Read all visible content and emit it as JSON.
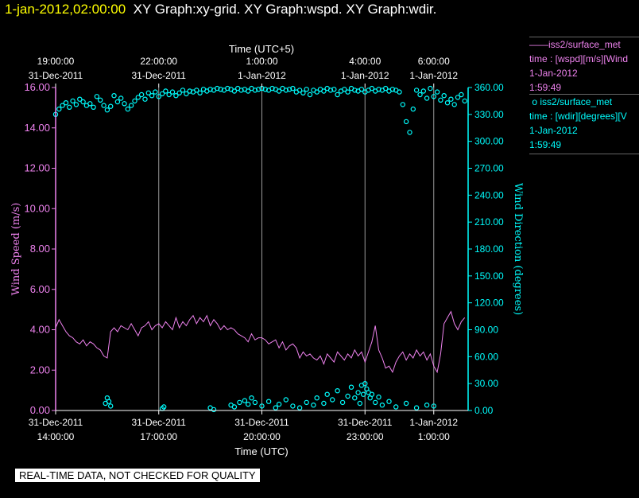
{
  "header": {
    "timestamp": "1-jan-2012,02:00:00",
    "graphs": "XY Graph:xy-grid.  XY Graph:wspd.  XY Graph:wdir."
  },
  "legend": [
    {
      "marker": "——",
      "name": "iss2/surface_met",
      "variable": "time : [wspd][m/s][Wind",
      "date": "1-Jan-2012",
      "time": "1:59:49",
      "color": "#ee82ee"
    },
    {
      "marker": "o",
      "name": "iss2/surface_met",
      "variable": "time : [wdir][degrees][V",
      "date": "1-Jan-2012",
      "time": "1:59:49",
      "color": "#00ffff"
    }
  ],
  "footer": {
    "warning": "REAL-TIME DATA, NOT CHECKED FOR QUALITY"
  },
  "chart_data": {
    "type": "line",
    "top_axis": {
      "label": "Time (UTC+5)",
      "ticks": [
        {
          "x": 14.0,
          "line1": "19:00:00",
          "line2": "31-Dec-2011"
        },
        {
          "x": 17.0,
          "line1": "22:00:00",
          "line2": "31-Dec-2011"
        },
        {
          "x": 20.0,
          "line1": "1:00:00",
          "line2": "1-Jan-2012"
        },
        {
          "x": 23.0,
          "line1": "4:00:00",
          "line2": "1-Jan-2012"
        },
        {
          "x": 25.0,
          "line1": "6:00:00",
          "line2": "1-Jan-2012"
        }
      ]
    },
    "bottom_axis": {
      "label": "Time (UTC)",
      "ticks": [
        {
          "x": 14.0,
          "line1": "31-Dec-2011",
          "line2": "14:00:00"
        },
        {
          "x": 17.0,
          "line1": "31-Dec-2011",
          "line2": "17:00:00"
        },
        {
          "x": 20.0,
          "line1": "31-Dec-2011",
          "line2": "20:00:00"
        },
        {
          "x": 23.0,
          "line1": "31-Dec-2011",
          "line2": "23:00:00"
        },
        {
          "x": 25.0,
          "line1": "1-Jan-2012",
          "line2": "1:00:00"
        }
      ]
    },
    "x_units": "hours (UTC) since 31-Dec-2011 00:00",
    "xlim": [
      14.0,
      26.0
    ],
    "left_axis": {
      "label": "Wind Speed (m/s)",
      "ylim": [
        0,
        16
      ],
      "ticks": [
        "0.00",
        "2.00",
        "4.00",
        "6.00",
        "8.00",
        "10.00",
        "12.00",
        "14.00",
        "16.00"
      ],
      "color": "#ee82ee"
    },
    "right_axis": {
      "label": "Wind Direction (degrees)",
      "ylim": [
        0,
        360
      ],
      "ticks": [
        "0.00",
        "30.00",
        "60.00",
        "90.00",
        "120.00",
        "150.00",
        "180.00",
        "210.00",
        "240.00",
        "270.00",
        "300.00",
        "330.00",
        "360.00"
      ],
      "color": "#00ffff"
    },
    "grid": true,
    "series": [
      {
        "name": "wspd",
        "axis": "left",
        "style": "line",
        "color": "#ee82ee",
        "x": [
          14.0,
          14.1,
          14.2,
          14.3,
          14.4,
          14.5,
          14.6,
          14.7,
          14.8,
          14.9,
          15.0,
          15.1,
          15.2,
          15.3,
          15.4,
          15.5,
          15.6,
          15.7,
          15.8,
          15.9,
          16.0,
          16.1,
          16.2,
          16.3,
          16.4,
          16.5,
          16.6,
          16.7,
          16.8,
          16.9,
          17.0,
          17.1,
          17.2,
          17.3,
          17.4,
          17.5,
          17.6,
          17.7,
          17.8,
          17.9,
          18.0,
          18.1,
          18.2,
          18.3,
          18.4,
          18.5,
          18.6,
          18.7,
          18.8,
          18.9,
          19.0,
          19.1,
          19.2,
          19.3,
          19.4,
          19.5,
          19.6,
          19.7,
          19.8,
          19.9,
          20.0,
          20.1,
          20.2,
          20.3,
          20.4,
          20.5,
          20.6,
          20.7,
          20.8,
          20.9,
          21.0,
          21.1,
          21.2,
          21.3,
          21.4,
          21.5,
          21.6,
          21.7,
          21.8,
          21.9,
          22.0,
          22.1,
          22.2,
          22.3,
          22.4,
          22.5,
          22.6,
          22.7,
          22.8,
          22.9,
          23.0,
          23.1,
          23.2,
          23.3,
          23.4,
          23.5,
          23.6,
          23.7,
          23.8,
          23.9,
          24.0,
          24.1,
          24.2,
          24.3,
          24.4,
          24.5,
          24.6,
          24.7,
          24.8,
          24.9,
          25.0,
          25.1,
          25.2,
          25.3,
          25.4,
          25.5,
          25.6,
          25.7,
          25.8,
          25.9
        ],
        "y": [
          4.1,
          4.5,
          4.2,
          3.9,
          3.7,
          3.6,
          3.4,
          3.3,
          3.5,
          3.2,
          3.4,
          3.3,
          3.1,
          3.0,
          2.7,
          2.6,
          3.9,
          4.1,
          3.9,
          4.2,
          4.1,
          4.0,
          4.3,
          4.0,
          3.7,
          4.1,
          4.2,
          4.4,
          4.0,
          4.2,
          4.3,
          4.1,
          4.4,
          4.2,
          4.0,
          4.6,
          4.1,
          4.4,
          4.2,
          4.5,
          4.7,
          4.3,
          4.6,
          4.4,
          4.7,
          4.2,
          4.5,
          4.3,
          4.0,
          4.2,
          4.0,
          4.1,
          4.0,
          3.8,
          3.7,
          3.6,
          3.4,
          3.8,
          3.5,
          3.6,
          3.6,
          3.5,
          3.3,
          3.4,
          3.5,
          3.1,
          3.4,
          3.0,
          3.2,
          3.3,
          3.1,
          2.6,
          2.9,
          2.7,
          2.8,
          2.6,
          2.5,
          2.7,
          2.3,
          2.8,
          2.6,
          2.4,
          2.9,
          2.7,
          2.5,
          2.8,
          2.6,
          3.0,
          2.7,
          2.9,
          2.4,
          2.9,
          3.4,
          4.2,
          3.0,
          2.6,
          2.1,
          2.2,
          1.9,
          2.4,
          2.7,
          2.9,
          2.5,
          2.8,
          2.6,
          3.0,
          2.7,
          2.9,
          2.5,
          2.8,
          2.2,
          1.9,
          2.8,
          4.3,
          4.6,
          4.9,
          4.3,
          4.0,
          4.4,
          4.6
        ]
      },
      {
        "name": "wdir",
        "axis": "right",
        "style": "circles",
        "color": "#00ffff",
        "x": [
          14.0,
          14.1,
          14.2,
          14.3,
          14.4,
          14.5,
          14.6,
          14.7,
          14.8,
          14.9,
          15.0,
          15.1,
          15.2,
          15.3,
          15.4,
          15.5,
          15.6,
          15.7,
          15.8,
          15.9,
          16.0,
          16.1,
          16.2,
          16.3,
          16.4,
          16.5,
          16.6,
          16.7,
          16.8,
          16.9,
          17.0,
          17.1,
          17.2,
          17.3,
          17.4,
          17.5,
          17.6,
          17.7,
          17.8,
          17.9,
          18.0,
          18.1,
          18.2,
          18.3,
          18.4,
          18.5,
          18.6,
          18.7,
          18.8,
          18.9,
          19.0,
          19.1,
          19.2,
          19.3,
          19.4,
          19.5,
          19.6,
          19.7,
          19.8,
          19.9,
          20.0,
          20.1,
          20.2,
          20.3,
          20.4,
          20.5,
          20.6,
          20.7,
          20.8,
          20.9,
          21.0,
          21.1,
          21.2,
          21.3,
          21.4,
          21.5,
          21.6,
          21.7,
          21.8,
          21.9,
          22.0,
          22.1,
          22.2,
          22.3,
          22.4,
          22.5,
          22.6,
          22.7,
          22.8,
          22.9,
          23.0,
          23.1,
          23.2,
          23.3,
          23.4,
          23.5,
          23.6,
          23.7,
          23.8,
          23.9,
          24.0,
          24.1,
          24.2,
          24.3,
          24.4,
          24.5,
          24.6,
          24.7,
          24.8,
          24.9,
          25.0,
          25.1,
          25.2,
          25.3,
          25.4,
          25.5,
          25.6,
          25.7,
          25.8,
          25.9
        ],
        "y": [
          330,
          336,
          340,
          343,
          338,
          345,
          341,
          347,
          344,
          340,
          342,
          338,
          350,
          346,
          340,
          335,
          339,
          351,
          344,
          348,
          342,
          336,
          340,
          345,
          349,
          352,
          347,
          354,
          351,
          355,
          350,
          353,
          356,
          352,
          355,
          351,
          354,
          357,
          353,
          356,
          355,
          357,
          354,
          358,
          356,
          358,
          357,
          359,
          358,
          357,
          359,
          358,
          356,
          359,
          357,
          358,
          356,
          359,
          357,
          358,
          359,
          358,
          357,
          359,
          358,
          356,
          359,
          357,
          358,
          359,
          355,
          357,
          354,
          358,
          352,
          357,
          355,
          358,
          356,
          359,
          357,
          358,
          352,
          356,
          358,
          355,
          359,
          357,
          356,
          358,
          355,
          357,
          359,
          356,
          358,
          357,
          359,
          356,
          358,
          357,
          355,
          341,
          322,
          310,
          336,
          357,
          352,
          356,
          348,
          359,
          350,
          355,
          346,
          351,
          343,
          347,
          341,
          349,
          352,
          345
        ]
      },
      {
        "name": "wdir-low",
        "axis": "right",
        "style": "circles",
        "color": "#00ffff",
        "x": [
          15.45,
          15.5,
          15.55,
          15.6,
          17.1,
          17.15,
          18.5,
          18.6,
          19.1,
          19.2,
          19.35,
          19.5,
          19.6,
          19.7,
          19.8,
          20.0,
          20.2,
          20.4,
          20.5,
          20.7,
          20.9,
          21.1,
          21.3,
          21.5,
          21.6,
          21.8,
          21.9,
          22.05,
          22.2,
          22.35,
          22.5,
          22.6,
          22.7,
          22.8,
          22.85,
          22.9,
          22.95,
          23.0,
          23.05,
          23.1,
          23.15,
          23.2,
          23.3,
          23.4,
          23.5,
          23.7,
          23.9,
          24.2,
          24.5,
          24.8,
          25.0
        ],
        "y": [
          8,
          14,
          10,
          5,
          2,
          4,
          3,
          1,
          6,
          4,
          9,
          11,
          7,
          14,
          9,
          5,
          10,
          3,
          7,
          12,
          5,
          3,
          9,
          6,
          14,
          8,
          18,
          12,
          22,
          9,
          16,
          26,
          14,
          20,
          8,
          28,
          18,
          30,
          24,
          20,
          14,
          18,
          9,
          15,
          6,
          10,
          4,
          8,
          3,
          6,
          5
        ]
      }
    ]
  }
}
